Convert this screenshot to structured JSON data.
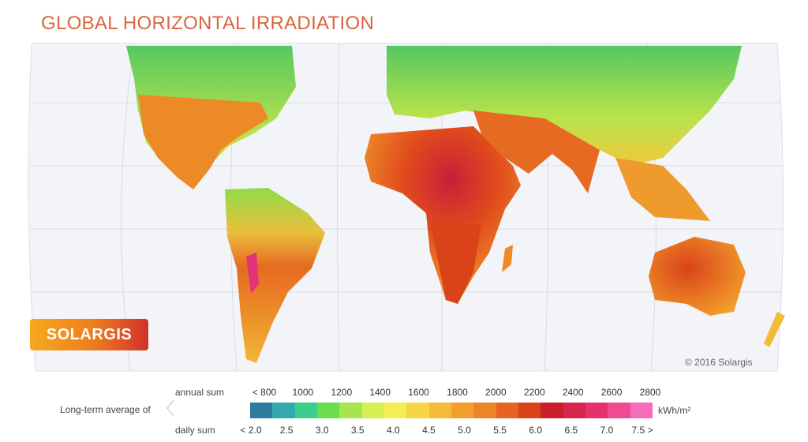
{
  "title": "GLOBAL HORIZONTAL IRRADIATION",
  "logo": "SOLARGIS",
  "copyright": "© 2016 Solargis",
  "legend": {
    "caption": "Long-term average of",
    "annual_label": "annual sum",
    "daily_label": "daily sum",
    "unit": "kWh/m²",
    "annual_ticks": [
      "< 800",
      "1000",
      "1200",
      "1400",
      "1600",
      "1800",
      "2000",
      "2200",
      "2400",
      "2600",
      "2800"
    ],
    "daily_ticks": [
      "< 2.0",
      "2.5",
      "3.0",
      "3.5",
      "4.0",
      "4.5",
      "5.0",
      "5.5",
      "6.0",
      "6.5",
      "7.0",
      "7.5 >"
    ],
    "colors": [
      "#2f7d9e",
      "#33a9ae",
      "#3ccf8c",
      "#6ade4c",
      "#a6e64c",
      "#d6ee4e",
      "#f4ee52",
      "#f7d642",
      "#f4bb36",
      "#f1a02d",
      "#ed8427",
      "#e76420",
      "#da4319",
      "#c91e2b",
      "#d6264c",
      "#e6316c",
      "#f04b92",
      "#f56cbc"
    ]
  }
}
